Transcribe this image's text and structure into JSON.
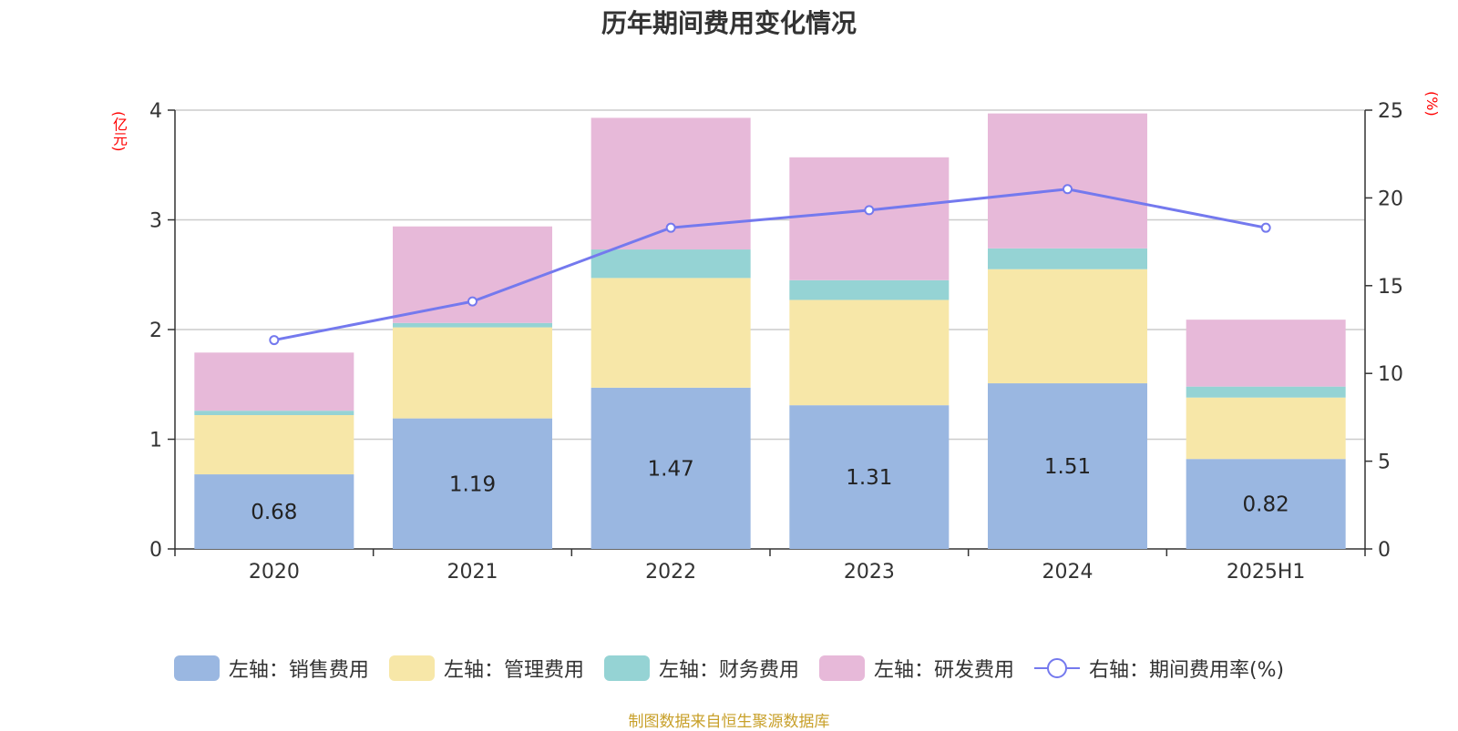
{
  "chart_data": {
    "type": "bar",
    "stacked": true,
    "title": "历年期间费用变化情况",
    "left_axis_unit": "(亿元)",
    "right_axis_unit": "(%)",
    "categories": [
      "2020",
      "2021",
      "2022",
      "2023",
      "2024",
      "2025H1"
    ],
    "ylim_left": [
      0,
      4
    ],
    "yticks_left": [
      "0",
      "1",
      "2",
      "3",
      "4"
    ],
    "ylim_right": [
      0,
      25
    ],
    "yticks_right": [
      "0",
      "5",
      "10",
      "15",
      "20",
      "25"
    ],
    "grid": true,
    "legend_position": "bottom",
    "series": [
      {
        "name": "左轴：销售费用",
        "axis": "left",
        "type": "bar",
        "color": "#9ab7e1",
        "values": [
          0.68,
          1.19,
          1.47,
          1.31,
          1.51,
          0.82
        ],
        "data_labels": [
          "0.68",
          "1.19",
          "1.47",
          "1.31",
          "1.51",
          "0.82"
        ]
      },
      {
        "name": "左轴：管理费用",
        "axis": "left",
        "type": "bar",
        "color": "#f7e7a8",
        "values": [
          0.54,
          0.83,
          1.0,
          0.96,
          1.04,
          0.56
        ]
      },
      {
        "name": "左轴：财务费用",
        "axis": "left",
        "type": "bar",
        "color": "#95d3d4",
        "values": [
          0.04,
          0.04,
          0.26,
          0.18,
          0.19,
          0.1
        ]
      },
      {
        "name": "左轴：研发费用",
        "axis": "left",
        "type": "bar",
        "color": "#e7b9d9",
        "values": [
          0.53,
          0.88,
          1.2,
          1.12,
          1.23,
          0.61
        ]
      },
      {
        "name": "右轴：期间费用率(%)",
        "axis": "right",
        "type": "line",
        "color": "#7479ee",
        "values": [
          11.9,
          14.1,
          18.3,
          19.3,
          20.5,
          18.3
        ]
      }
    ]
  },
  "source": "制图数据来自恒生聚源数据库"
}
